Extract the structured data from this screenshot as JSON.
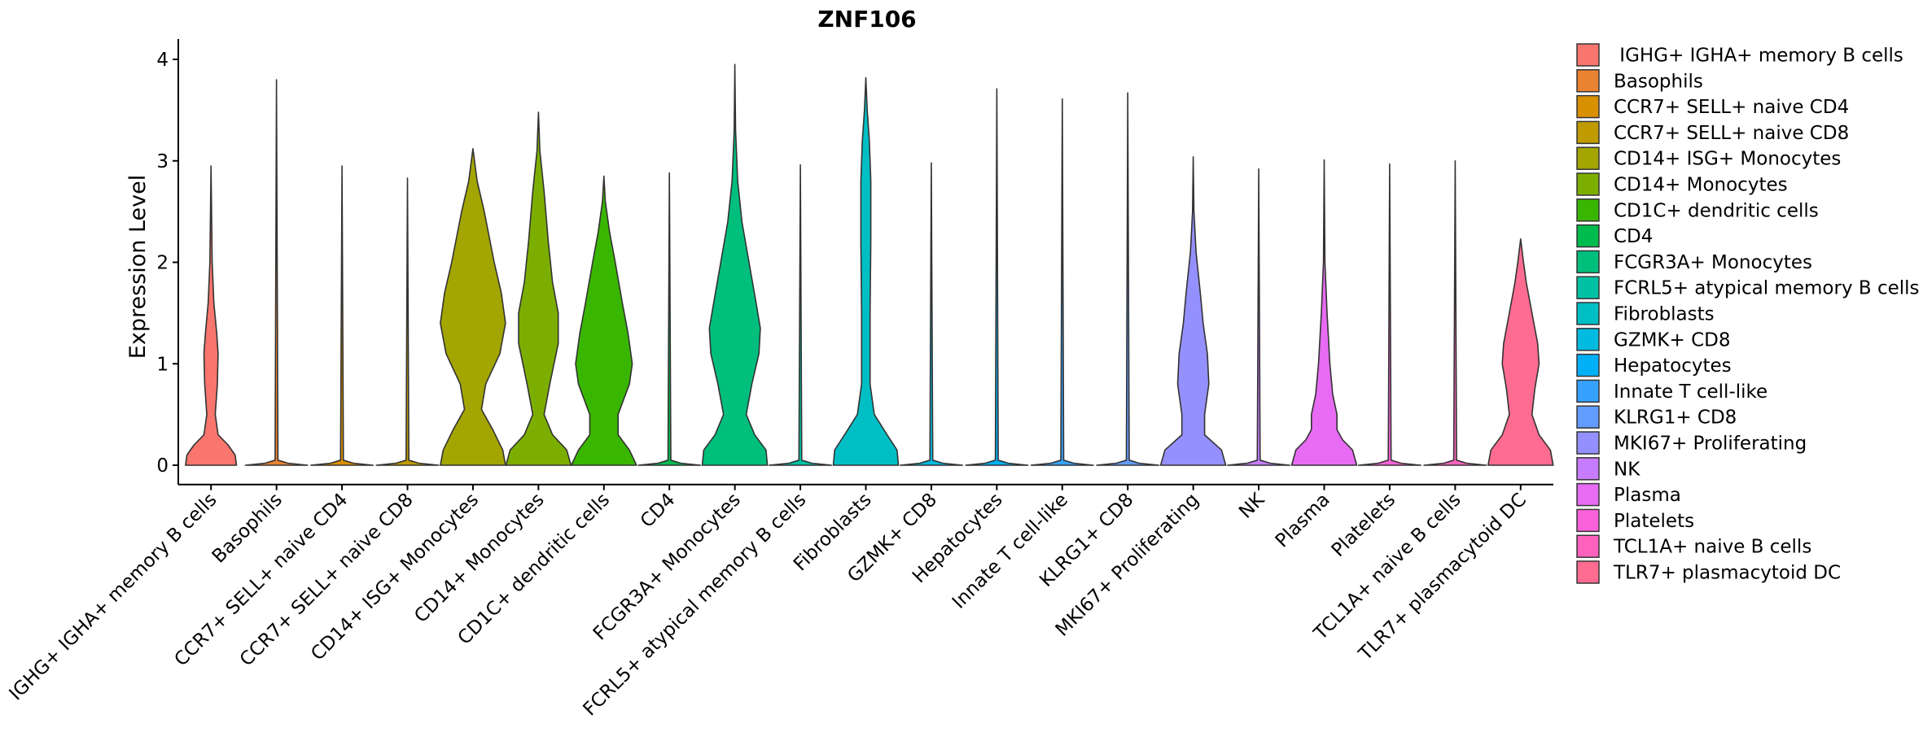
{
  "chart_data": {
    "type": "violin",
    "title": "ZNF106",
    "xlabel": "",
    "ylabel": "Expression Level",
    "ylim": [
      -0.19,
      4.2
    ],
    "yticks": [
      0,
      1,
      2,
      3,
      4
    ],
    "grid": false,
    "legend_position": "right",
    "categories": [
      {
        "label": "IGHG+ IGHA+ memory B cells",
        "legend_label": " IGHG+ IGHA+ memory B cells",
        "color": "#F8766D",
        "max": 2.95,
        "profile": [
          [
            0,
            0.18
          ],
          [
            0.1,
            0.17
          ],
          [
            0.2,
            0.12
          ],
          [
            0.3,
            0.05
          ],
          [
            0.5,
            0.03
          ],
          [
            0.8,
            0.045
          ],
          [
            1.1,
            0.05
          ],
          [
            1.3,
            0.04
          ],
          [
            1.6,
            0.02
          ],
          [
            2.0,
            0.008
          ],
          [
            2.95,
            0
          ]
        ]
      },
      {
        "label": "Basophils",
        "legend_label": "Basophils",
        "color": "#EA8331",
        "max": 3.8,
        "profile": [
          [
            0,
            0.22
          ],
          [
            0.02,
            0.08
          ],
          [
            0.05,
            0.01
          ],
          [
            3.8,
            0
          ]
        ]
      },
      {
        "label": "CCR7+ SELL+ naive CD4",
        "legend_label": "CCR7+ SELL+ naive CD4",
        "color": "#D89000",
        "max": 2.95,
        "profile": [
          [
            0,
            0.22
          ],
          [
            0.02,
            0.08
          ],
          [
            0.05,
            0.01
          ],
          [
            2.95,
            0
          ]
        ]
      },
      {
        "label": "CCR7+ SELL+ naive CD8",
        "legend_label": "CCR7+ SELL+ naive CD8",
        "color": "#C09B00",
        "max": 2.83,
        "profile": [
          [
            0,
            0.22
          ],
          [
            0.02,
            0.08
          ],
          [
            0.05,
            0.01
          ],
          [
            2.83,
            0
          ]
        ]
      },
      {
        "label": "CD14+ ISG+ Monocytes",
        "legend_label": "CD14+ ISG+ Monocytes",
        "color": "#A3A500",
        "max": 3.12,
        "profile": [
          [
            0,
            0.23
          ],
          [
            0.15,
            0.21
          ],
          [
            0.35,
            0.14
          ],
          [
            0.55,
            0.06
          ],
          [
            0.8,
            0.09
          ],
          [
            1.1,
            0.19
          ],
          [
            1.4,
            0.23
          ],
          [
            1.7,
            0.2
          ],
          [
            2.0,
            0.15
          ],
          [
            2.5,
            0.08
          ],
          [
            2.8,
            0.03
          ],
          [
            3.12,
            0
          ]
        ]
      },
      {
        "label": "CD14+ Monocytes",
        "legend_label": "CD14+ Monocytes",
        "color": "#7CAE00",
        "max": 3.48,
        "profile": [
          [
            0,
            0.23
          ],
          [
            0.15,
            0.2
          ],
          [
            0.3,
            0.1
          ],
          [
            0.5,
            0.04
          ],
          [
            0.8,
            0.08
          ],
          [
            1.2,
            0.14
          ],
          [
            1.5,
            0.14
          ],
          [
            1.8,
            0.1
          ],
          [
            2.2,
            0.07
          ],
          [
            2.7,
            0.04
          ],
          [
            3.1,
            0.01
          ],
          [
            3.48,
            0
          ]
        ]
      },
      {
        "label": "CD1C+ dendritic cells",
        "legend_label": "CD1C+ dendritic cells",
        "color": "#39B600",
        "max": 2.85,
        "profile": [
          [
            0,
            0.23
          ],
          [
            0.15,
            0.18
          ],
          [
            0.3,
            0.1
          ],
          [
            0.5,
            0.1
          ],
          [
            0.8,
            0.18
          ],
          [
            1.0,
            0.2
          ],
          [
            1.3,
            0.17
          ],
          [
            1.6,
            0.13
          ],
          [
            2.0,
            0.08
          ],
          [
            2.3,
            0.04
          ],
          [
            2.6,
            0.01
          ],
          [
            2.85,
            0
          ]
        ]
      },
      {
        "label": "CD4",
        "legend_label": "CD4",
        "color": "#00BB4E",
        "max": 2.88,
        "profile": [
          [
            0,
            0.22
          ],
          [
            0.02,
            0.08
          ],
          [
            0.05,
            0.01
          ],
          [
            2.88,
            0
          ]
        ]
      },
      {
        "label": "FCGR3A+ Monocytes",
        "legend_label": "FCGR3A+ Monocytes",
        "color": "#00BF7D",
        "max": 3.95,
        "profile": [
          [
            0,
            0.23
          ],
          [
            0.15,
            0.22
          ],
          [
            0.3,
            0.14
          ],
          [
            0.5,
            0.08
          ],
          [
            0.8,
            0.12
          ],
          [
            1.1,
            0.17
          ],
          [
            1.35,
            0.18
          ],
          [
            1.6,
            0.15
          ],
          [
            2.0,
            0.1
          ],
          [
            2.4,
            0.05
          ],
          [
            2.8,
            0.02
          ],
          [
            3.3,
            0.005
          ],
          [
            3.95,
            0
          ]
        ]
      },
      {
        "label": "FCRL5+ atypical memory B cells",
        "legend_label": "FCRL5+ atypical memory B cells",
        "color": "#00C1A3",
        "max": 2.96,
        "profile": [
          [
            0,
            0.22
          ],
          [
            0.02,
            0.08
          ],
          [
            0.05,
            0.01
          ],
          [
            2.96,
            0
          ]
        ]
      },
      {
        "label": "Fibroblasts",
        "legend_label": "Fibroblasts",
        "color": "#00BFC4",
        "max": 3.82,
        "profile": [
          [
            0,
            0.23
          ],
          [
            0.15,
            0.22
          ],
          [
            0.3,
            0.15
          ],
          [
            0.5,
            0.06
          ],
          [
            0.8,
            0.03
          ],
          [
            1.5,
            0.03
          ],
          [
            2.2,
            0.035
          ],
          [
            2.8,
            0.035
          ],
          [
            3.2,
            0.025
          ],
          [
            3.5,
            0.01
          ],
          [
            3.82,
            0
          ]
        ]
      },
      {
        "label": "GZMK+ CD8",
        "legend_label": "GZMK+ CD8",
        "color": "#00BAE0",
        "max": 2.98,
        "profile": [
          [
            0,
            0.22
          ],
          [
            0.02,
            0.08
          ],
          [
            0.05,
            0.01
          ],
          [
            2.98,
            0
          ]
        ]
      },
      {
        "label": "Hepatocytes",
        "legend_label": "Hepatocytes",
        "color": "#00B0F6",
        "max": 3.71,
        "profile": [
          [
            0,
            0.22
          ],
          [
            0.02,
            0.08
          ],
          [
            0.05,
            0.01
          ],
          [
            3.71,
            0
          ]
        ]
      },
      {
        "label": "Innate T cell-like",
        "legend_label": "Innate T cell-like",
        "color": "#35A2FF",
        "max": 3.61,
        "profile": [
          [
            0,
            0.22
          ],
          [
            0.02,
            0.08
          ],
          [
            0.05,
            0.01
          ],
          [
            3.61,
            0
          ]
        ]
      },
      {
        "label": "KLRG1+ CD8",
        "legend_label": "KLRG1+ CD8",
        "color": "#619CFF",
        "max": 3.67,
        "profile": [
          [
            0,
            0.22
          ],
          [
            0.02,
            0.08
          ],
          [
            0.05,
            0.01
          ],
          [
            3.67,
            0
          ]
        ]
      },
      {
        "label": "MKI67+ Proliferating",
        "legend_label": "MKI67+ Proliferating",
        "color": "#9590FF",
        "max": 3.04,
        "profile": [
          [
            0,
            0.23
          ],
          [
            0.15,
            0.2
          ],
          [
            0.3,
            0.08
          ],
          [
            0.5,
            0.08
          ],
          [
            0.8,
            0.11
          ],
          [
            1.1,
            0.1
          ],
          [
            1.4,
            0.07
          ],
          [
            1.7,
            0.05
          ],
          [
            2.1,
            0.02
          ],
          [
            2.5,
            0.005
          ],
          [
            3.04,
            0
          ]
        ]
      },
      {
        "label": "NK",
        "legend_label": "NK",
        "color": "#C77CFF",
        "max": 2.92,
        "profile": [
          [
            0,
            0.22
          ],
          [
            0.02,
            0.08
          ],
          [
            0.05,
            0.01
          ],
          [
            2.92,
            0
          ]
        ]
      },
      {
        "label": "Plasma",
        "legend_label": "Plasma",
        "color": "#E76BF3",
        "max": 3.01,
        "profile": [
          [
            0,
            0.23
          ],
          [
            0.15,
            0.2
          ],
          [
            0.25,
            0.13
          ],
          [
            0.35,
            0.09
          ],
          [
            0.5,
            0.09
          ],
          [
            0.7,
            0.06
          ],
          [
            1.0,
            0.04
          ],
          [
            1.5,
            0.02
          ],
          [
            2.0,
            0.005
          ],
          [
            3.01,
            0
          ]
        ]
      },
      {
        "label": "Platelets",
        "legend_label": "Platelets",
        "color": "#FA62DB",
        "max": 2.97,
        "profile": [
          [
            0,
            0.22
          ],
          [
            0.02,
            0.08
          ],
          [
            0.05,
            0.01
          ],
          [
            2.97,
            0
          ]
        ]
      },
      {
        "label": "TCL1A+ naive B cells",
        "legend_label": "TCL1A+ naive B cells",
        "color": "#FF62BC",
        "max": 3.0,
        "profile": [
          [
            0,
            0.22
          ],
          [
            0.02,
            0.08
          ],
          [
            0.05,
            0.01
          ],
          [
            3.0,
            0
          ]
        ]
      },
      {
        "label": "TLR7+ plasmacytoid DC",
        "legend_label": "TLR7+ plasmacytoid DC",
        "color": "#FF6C91",
        "max": 2.23,
        "profile": [
          [
            0,
            0.23
          ],
          [
            0.15,
            0.21
          ],
          [
            0.3,
            0.13
          ],
          [
            0.5,
            0.08
          ],
          [
            0.75,
            0.1
          ],
          [
            1.0,
            0.13
          ],
          [
            1.2,
            0.12
          ],
          [
            1.5,
            0.08
          ],
          [
            1.8,
            0.04
          ],
          [
            2.0,
            0.02
          ],
          [
            2.23,
            0
          ]
        ]
      }
    ]
  }
}
